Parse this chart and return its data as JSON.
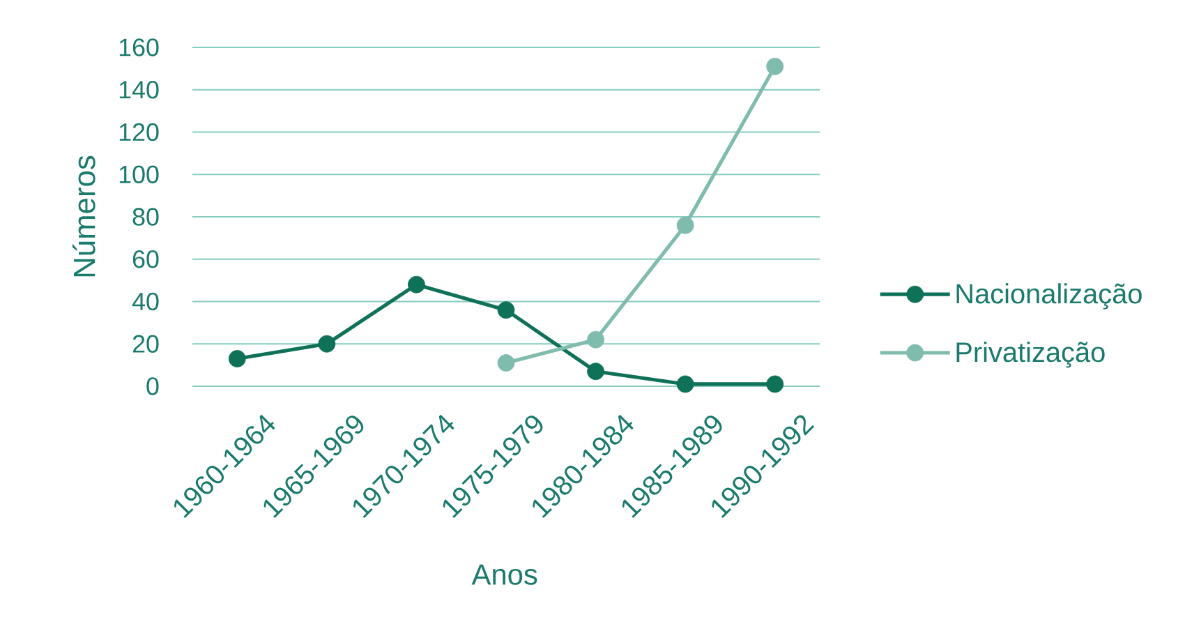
{
  "chart_data": {
    "type": "line",
    "xlabel": "Anos",
    "ylabel": "Números",
    "categories": [
      "1960-1964",
      "1965-1969",
      "1970-1974",
      "1975-1979",
      "1980-1984",
      "1985-1989",
      "1990-1992"
    ],
    "series": [
      {
        "name": "Nacionalização",
        "color": "#0e7158",
        "values": [
          13,
          20,
          48,
          36,
          7,
          1,
          1
        ]
      },
      {
        "name": "Privatização",
        "color": "#80bcae",
        "values": [
          null,
          null,
          null,
          11,
          22,
          76,
          151
        ]
      }
    ],
    "ylim": [
      0,
      160
    ],
    "yticks": [
      0,
      20,
      40,
      60,
      80,
      100,
      120,
      140,
      160
    ],
    "grid": "y",
    "legend": "right",
    "marker": "circle",
    "line_style": "solid"
  }
}
